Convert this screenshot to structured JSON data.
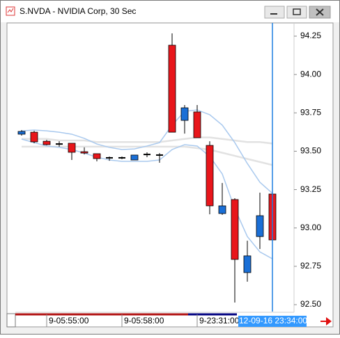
{
  "window": {
    "title": "S.NVDA - NVIDIA Corp, 30 Sec"
  },
  "chart_data": {
    "type": "candlestick",
    "categories": [
      null,
      null,
      "9-05:55:00",
      null,
      null,
      null,
      null,
      null,
      "9-05:58:00",
      null,
      null,
      null,
      null,
      null,
      "9-23:31:00",
      null,
      null,
      null,
      null,
      null,
      null
    ],
    "cursor_label": "12-09-16 23:34:00",
    "open": [
      93.611,
      93.624,
      93.565,
      93.547,
      93.552,
      93.497,
      93.484,
      93.457,
      93.457,
      93.443,
      93.479,
      93.475,
      94.191,
      93.701,
      93.756,
      93.538,
      93.094,
      93.185,
      92.709,
      92.944,
      93.221
    ],
    "high": [
      93.638,
      93.633,
      93.574,
      93.565,
      93.552,
      93.525,
      93.484,
      93.466,
      93.466,
      93.475,
      93.493,
      93.488,
      94.268,
      93.801,
      93.801,
      93.565,
      93.293,
      93.194,
      92.917,
      93.23,
      93.307
    ],
    "low": [
      93.602,
      93.552,
      93.538,
      93.529,
      93.443,
      93.479,
      93.434,
      93.438,
      93.448,
      93.443,
      93.461,
      93.425,
      93.624,
      93.615,
      93.588,
      93.089,
      93.085,
      92.514,
      92.65,
      92.863,
      92.872
    ],
    "close": [
      93.629,
      93.561,
      93.543,
      93.547,
      93.493,
      93.488,
      93.452,
      93.457,
      93.457,
      93.475,
      93.479,
      93.475,
      93.624,
      93.783,
      93.588,
      93.144,
      93.144,
      92.795,
      92.818,
      93.08,
      92.922
    ],
    "up_color": "#1a6fd6",
    "down_color": "#e8161b",
    "flat_color": "#000000",
    "lines": [
      {
        "color": "#e2e2e2",
        "values": [
          93.58,
          93.58,
          93.58,
          93.57,
          93.57,
          93.57,
          93.56,
          93.56,
          93.56,
          93.56,
          93.56,
          93.56,
          93.57,
          93.58,
          93.59,
          93.59,
          93.58,
          93.57,
          93.56,
          93.56,
          93.55
        ]
      },
      {
        "color": "#e2e2e2",
        "values": [
          93.53,
          93.53,
          93.53,
          93.53,
          93.53,
          93.53,
          93.53,
          93.53,
          93.53,
          93.53,
          93.53,
          93.53,
          93.53,
          93.53,
          93.52,
          93.51,
          93.49,
          93.47,
          93.45,
          93.43,
          93.41
        ]
      },
      {
        "color": "#a9c9ee",
        "values": [
          93.633,
          93.638,
          93.633,
          93.624,
          93.611,
          93.584,
          93.547,
          93.525,
          93.511,
          93.515,
          93.534,
          93.556,
          93.67,
          93.76,
          93.769,
          93.738,
          93.67,
          93.556,
          93.42,
          93.298,
          93.225
        ]
      },
      {
        "color": "#a9c9ee",
        "values": [
          93.579,
          93.556,
          93.534,
          93.525,
          93.511,
          93.488,
          93.461,
          93.443,
          93.434,
          93.434,
          93.434,
          93.443,
          93.511,
          93.543,
          93.534,
          93.466,
          93.352,
          93.126,
          92.944,
          92.844,
          92.799
        ]
      }
    ],
    "ylim": [
      92.455,
      94.336
    ],
    "yticks": [
      {
        "value": 92.5,
        "label": "92.50"
      },
      92.75,
      {
        "value": 93,
        "label": "93.00"
      },
      93.25,
      {
        "value": 93.5,
        "label": "93.50"
      },
      93.75,
      {
        "value": 94,
        "label": "94.00"
      },
      94.25
    ]
  }
}
